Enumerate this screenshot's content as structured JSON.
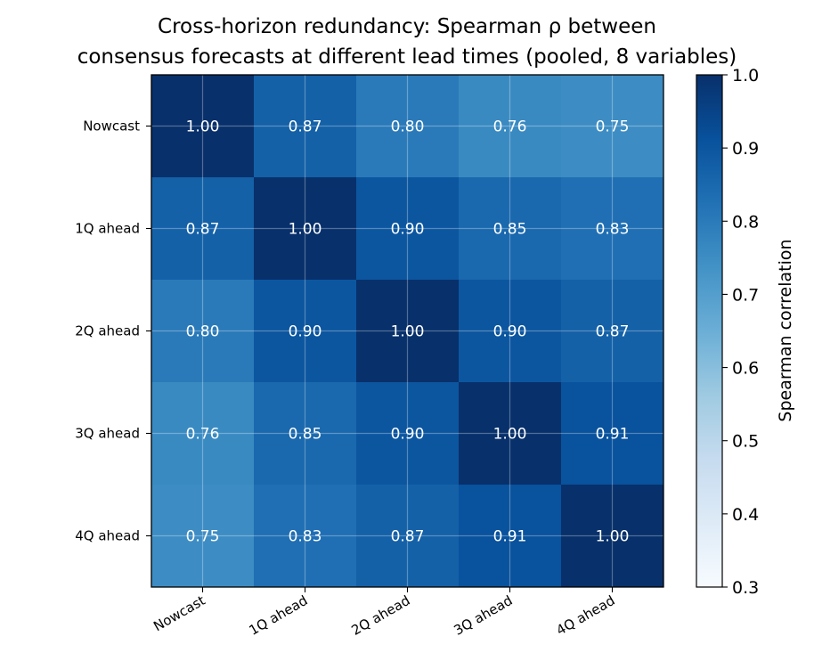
{
  "chart_data": {
    "type": "heatmap",
    "title_line1": "Cross-horizon redundancy: Spearman ρ between",
    "title_line2": "consensus forecasts at different lead times (pooled, 8 variables)",
    "x_categories": [
      "Nowcast",
      "1Q ahead",
      "2Q ahead",
      "3Q ahead",
      "4Q ahead"
    ],
    "y_categories": [
      "Nowcast",
      "1Q ahead",
      "2Q ahead",
      "3Q ahead",
      "4Q ahead"
    ],
    "values": [
      [
        1.0,
        0.87,
        0.8,
        0.76,
        0.75
      ],
      [
        0.87,
        1.0,
        0.9,
        0.85,
        0.83
      ],
      [
        0.8,
        0.9,
        1.0,
        0.9,
        0.87
      ],
      [
        0.76,
        0.85,
        0.9,
        1.0,
        0.91
      ],
      [
        0.75,
        0.83,
        0.87,
        0.91,
        1.0
      ]
    ],
    "value_labels": [
      [
        "1.00",
        "0.87",
        "0.80",
        "0.76",
        "0.75"
      ],
      [
        "0.87",
        "1.00",
        "0.90",
        "0.85",
        "0.83"
      ],
      [
        "0.80",
        "0.90",
        "1.00",
        "0.90",
        "0.87"
      ],
      [
        "0.76",
        "0.85",
        "0.90",
        "1.00",
        "0.91"
      ],
      [
        "0.75",
        "0.83",
        "0.87",
        "0.91",
        "1.00"
      ]
    ],
    "colorbar": {
      "label": "Spearman correlation",
      "range": [
        0.3,
        1.0
      ],
      "ticks": [
        "0.3",
        "0.4",
        "0.5",
        "0.6",
        "0.7",
        "0.8",
        "0.9",
        "1.0"
      ],
      "colormap": "Blues"
    },
    "grid": true
  }
}
